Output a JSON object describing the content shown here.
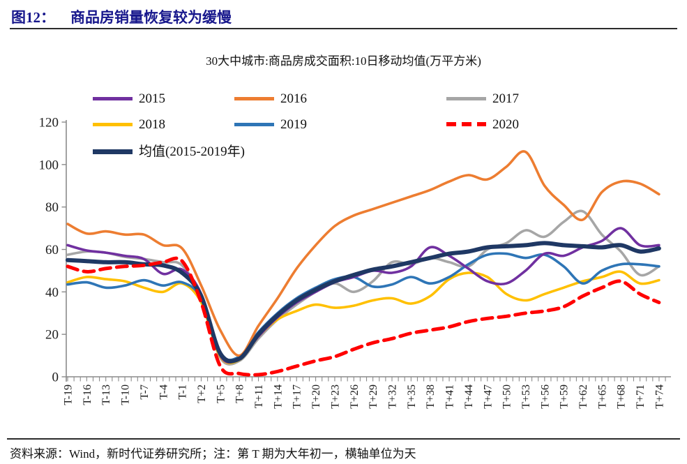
{
  "header": {
    "figure_label": "图12：",
    "title": "商品房销量恢复较为缓慢"
  },
  "footer": {
    "text": "资料来源：Wind，新时代证券研究所；注：第 T 期为大年初一，横轴单位为天"
  },
  "colors": {
    "header_text": "#17178C",
    "axis_line": "#8a8a8a",
    "tick_label": "#1c1c1c",
    "s2015": "#7030A0",
    "s2016": "#ED7D31",
    "s2017": "#A6A6A6",
    "s2018": "#FFC000",
    "s2019": "#2E75B6",
    "s2020": "#FF0000",
    "mean": "#1F3864"
  },
  "chart_data": {
    "type": "line",
    "title": "30大中城市:商品房成交面积:10日移动均值(万平方米)",
    "xlabel": "",
    "ylabel": "",
    "ylim": [
      0,
      120
    ],
    "y_ticks": [
      0,
      20,
      40,
      60,
      80,
      100,
      120
    ],
    "grid": false,
    "legend_position": "top",
    "x_unit_note": "横轴单位为天, T=大年初一, 数据每3天一个刻度",
    "x_labels": [
      "T-19",
      "T-16",
      "T-13",
      "T-10",
      "T-7",
      "T-4",
      "T-1",
      "T+2",
      "T+5",
      "T+8",
      "T+11",
      "T+14",
      "T+17",
      "T+20",
      "T+23",
      "T+26",
      "T+29",
      "T+32",
      "T+35",
      "T+38",
      "T+41",
      "T+44",
      "T+47",
      "T+50",
      "T+53",
      "T+56",
      "T+59",
      "T+62",
      "T+65",
      "T+68",
      "T+71",
      "T+74"
    ],
    "series": [
      {
        "name": "2017",
        "color": "#A6A6A6",
        "style": "solid",
        "width": 3.6,
        "values": [
          57.5,
          59,
          58.5,
          56.5,
          55.5,
          54,
          52.5,
          37,
          9,
          7.5,
          18,
          27,
          34,
          40,
          44,
          40,
          45,
          54,
          53,
          56,
          54,
          52,
          60,
          63,
          69,
          66,
          73,
          78,
          67,
          59,
          48,
          52
        ]
      },
      {
        "name": "2018",
        "color": "#FFC000",
        "style": "solid",
        "width": 3.6,
        "values": [
          44.5,
          47,
          46,
          45,
          42,
          40,
          44,
          35,
          9.5,
          8,
          19,
          27,
          31,
          34,
          32.5,
          33.5,
          36,
          37,
          34.5,
          38,
          46,
          49,
          47,
          39,
          36,
          39,
          42,
          45,
          47,
          49.5,
          44,
          45.5
        ]
      },
      {
        "name": "2019",
        "color": "#2E75B6",
        "style": "solid",
        "width": 3.6,
        "values": [
          43.5,
          44.5,
          42,
          43,
          45.5,
          43,
          44.5,
          37,
          11,
          9.5,
          21,
          30,
          37,
          42,
          46,
          47,
          42.5,
          43.5,
          47,
          44,
          47,
          53,
          57.5,
          58,
          56,
          57.5,
          52,
          44,
          50,
          53,
          53,
          52
        ]
      },
      {
        "name": "2015",
        "color": "#7030A0",
        "style": "solid",
        "width": 3.6,
        "values": [
          62,
          59.5,
          58.5,
          57,
          55.5,
          48.5,
          50.5,
          39,
          10,
          8.5,
          19,
          28,
          35,
          40,
          44.5,
          47,
          50,
          49,
          52,
          61,
          57,
          51,
          45,
          44,
          50,
          58,
          57,
          61,
          64,
          70,
          62,
          62
        ]
      },
      {
        "name": "2016",
        "color": "#ED7D31",
        "style": "solid",
        "width": 3.6,
        "values": [
          72,
          67.5,
          68.5,
          67,
          67,
          62,
          60.5,
          43,
          22,
          10,
          24,
          37,
          51,
          62,
          71,
          76,
          79,
          82,
          85,
          88,
          92,
          95,
          93,
          99,
          106,
          90,
          81,
          74,
          87,
          92,
          91,
          86
        ]
      },
      {
        "name": "均值(2015-2019年)",
        "color": "#1F3864",
        "style": "solid",
        "width": 6,
        "values": [
          55,
          54.5,
          54,
          54,
          53,
          52.5,
          49,
          38,
          11,
          8.5,
          20,
          29,
          36,
          41,
          45,
          48,
          50.5,
          52,
          54,
          56,
          58,
          59,
          61,
          61.5,
          62,
          63,
          62,
          61.5,
          61,
          62,
          59,
          60.5
        ]
      },
      {
        "name": "2020",
        "color": "#FF0000",
        "style": "dashed",
        "width": 5,
        "values": [
          52,
          49.5,
          51,
          52,
          52.5,
          54,
          54.5,
          35,
          5,
          1.5,
          1,
          2.5,
          5,
          7.5,
          9.5,
          13,
          16,
          18,
          20.5,
          22,
          23.5,
          26,
          27.5,
          28.5,
          30,
          31,
          33,
          38,
          42,
          45,
          39,
          35
        ]
      }
    ],
    "legend_order": [
      "2015",
      "2016",
      "2017",
      "2018",
      "2019",
      "2020",
      "均值(2015-2019年)"
    ]
  },
  "legend": {
    "l2015": "2015",
    "l2016": "2016",
    "l2017": "2017",
    "l2018": "2018",
    "l2019": "2019",
    "l2020": "2020",
    "lmean": "均值(2015-2019年)"
  }
}
